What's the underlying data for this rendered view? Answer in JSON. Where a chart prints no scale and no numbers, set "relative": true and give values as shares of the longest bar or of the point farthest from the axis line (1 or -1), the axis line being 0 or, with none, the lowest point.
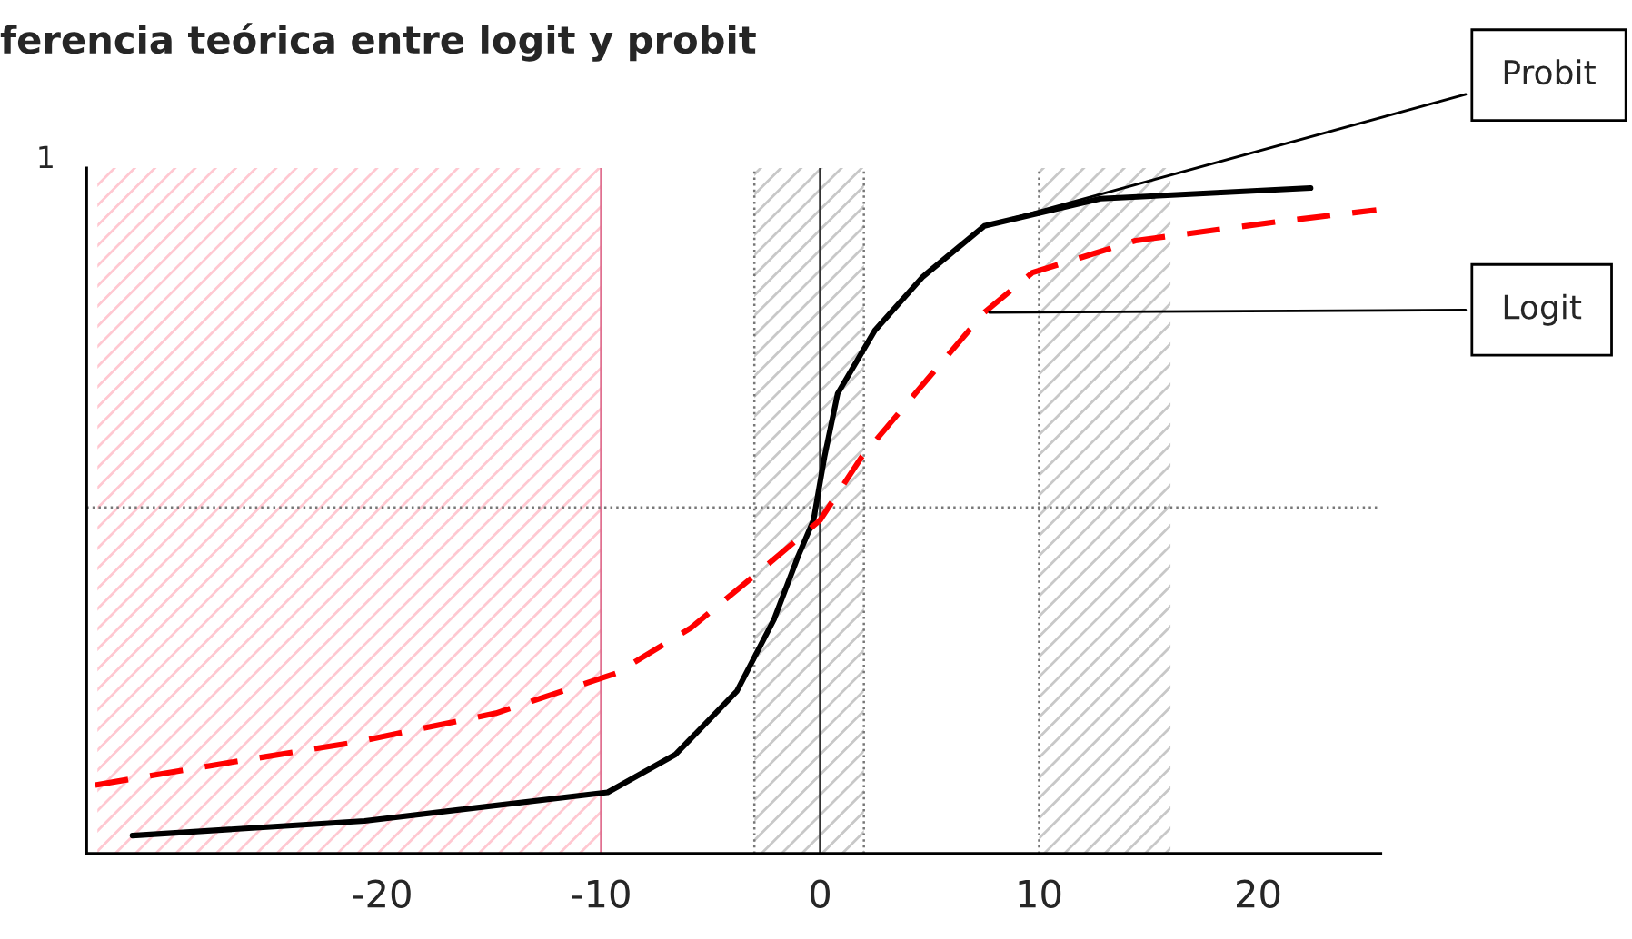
{
  "chart_data": {
    "type": "line",
    "title": "ferencia teórica entre logit y probit",
    "relative": true,
    "tick_labels": "x",
    "xlim": [
      -33.5,
      25.6
    ],
    "xticks": [
      -20,
      -10,
      0,
      10,
      20
    ],
    "series": [
      {
        "name": "Probit",
        "color": "#000000",
        "line_style": "solid",
        "x": [
          -31.4,
          -20.8,
          -9.7,
          -6.6,
          -3.8,
          -2.1,
          -1.0,
          -0.3,
          0.2,
          0.8,
          2.5,
          4.7,
          7.5,
          12.8,
          22.4
        ],
        "values": [
          0.027,
          0.049,
          0.092,
          0.149,
          0.244,
          0.352,
          0.447,
          0.501,
          0.596,
          0.691,
          0.786,
          0.867,
          0.943,
          0.984,
          1.0
        ]
      },
      {
        "name": "Logit",
        "color": "#ff0000",
        "line_style": "dashed",
        "x": [
          -33.1,
          -27.1,
          -21.1,
          -14.8,
          -9.3,
          -5.9,
          -2.4,
          0,
          1.9,
          4.7,
          7.5,
          9.7,
          14.4,
          20.8,
          25.4
        ],
        "values": [
          0.103,
          0.136,
          0.168,
          0.211,
          0.271,
          0.339,
          0.434,
          0.501,
          0.596,
          0.705,
          0.813,
          0.873,
          0.921,
          0.949,
          0.967
        ]
      }
    ],
    "ref_lines": [
      {
        "axis": "x",
        "value": -10,
        "color": "#e07090",
        "line_style": "solid"
      },
      {
        "axis": "x",
        "value": -3,
        "color": "#777777",
        "line_style": "dotted"
      },
      {
        "axis": "x",
        "value": 0,
        "color": "#333333",
        "line_style": "solid"
      },
      {
        "axis": "x",
        "value": 2,
        "color": "#777777",
        "line_style": "dotted"
      },
      {
        "axis": "x",
        "value": 10,
        "color": "#777777",
        "line_style": "dotted"
      },
      {
        "axis": "y",
        "value": 0.52,
        "color": "#777777",
        "line_style": "dotted"
      }
    ],
    "bands": [
      {
        "axis": "x",
        "from": -33,
        "to": -10,
        "color": "#ff6680"
      },
      {
        "axis": "x",
        "from": -3,
        "to": 2,
        "color": "#666666"
      },
      {
        "axis": "x",
        "from": 10,
        "to": 16,
        "color": "#666666"
      }
    ],
    "annotations": [
      "1"
    ]
  }
}
